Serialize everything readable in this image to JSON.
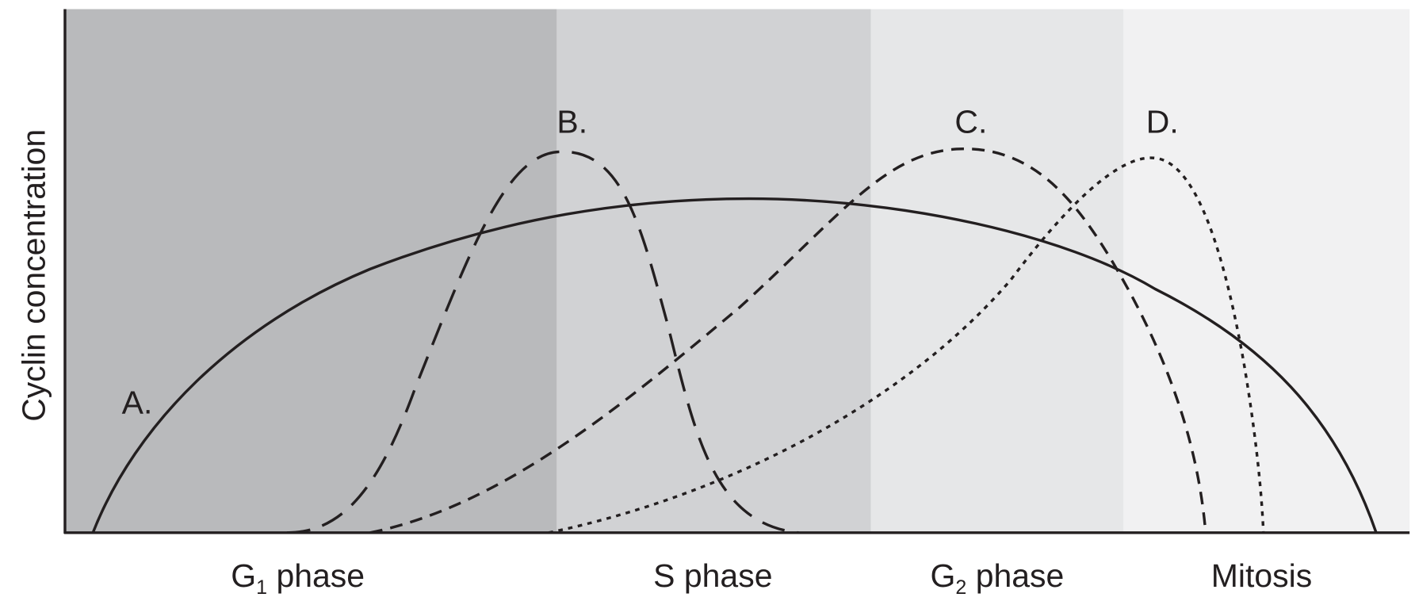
{
  "y_axis_label": "Cyclin concentration",
  "curve_labels": [
    "A.",
    "B.",
    "C.",
    "D."
  ],
  "phases": [
    {
      "name": "G",
      "subscript": "1",
      "rest": "phase"
    },
    {
      "name": "S phase"
    },
    {
      "name": "G",
      "subscript": "2",
      "rest": "phase"
    },
    {
      "name": "Mitosis"
    }
  ]
}
